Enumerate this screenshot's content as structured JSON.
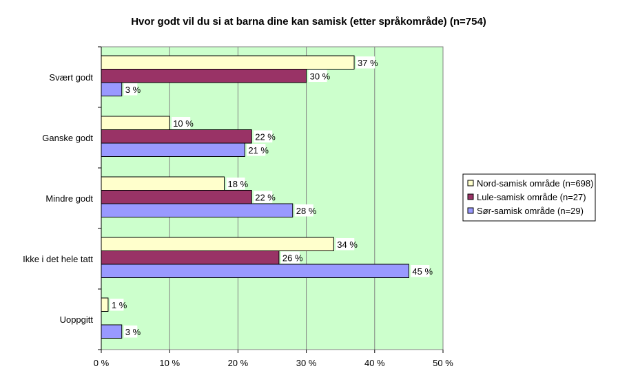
{
  "chart_data": {
    "type": "bar",
    "orientation": "horizontal",
    "title": "Hvor godt vil du si at barna dine kan samisk (etter språkområde) (n=754)",
    "categories": [
      "Svært godt",
      "Ganske godt",
      "Mindre godt",
      "Ikke i det hele tatt",
      "Uoppgitt"
    ],
    "series": [
      {
        "name": "Nord-samisk område (n=698)",
        "color": "#ffffcc",
        "values": [
          37,
          10,
          18,
          34,
          1
        ]
      },
      {
        "name": "Lule-samisk område (n=27)",
        "color": "#993366",
        "values": [
          30,
          22,
          22,
          26,
          null
        ]
      },
      {
        "name": "Sør-samisk område (n=29)",
        "color": "#9999ff",
        "values": [
          3,
          21,
          28,
          45,
          3
        ]
      }
    ],
    "value_unit": "%",
    "xlim": [
      0,
      50
    ],
    "xticks": [
      "0 %",
      "10 %",
      "20 %",
      "30 %",
      "40 %",
      "50 %"
    ],
    "plot_background": "#ccffcc",
    "grid": true,
    "legend_position": "right"
  }
}
